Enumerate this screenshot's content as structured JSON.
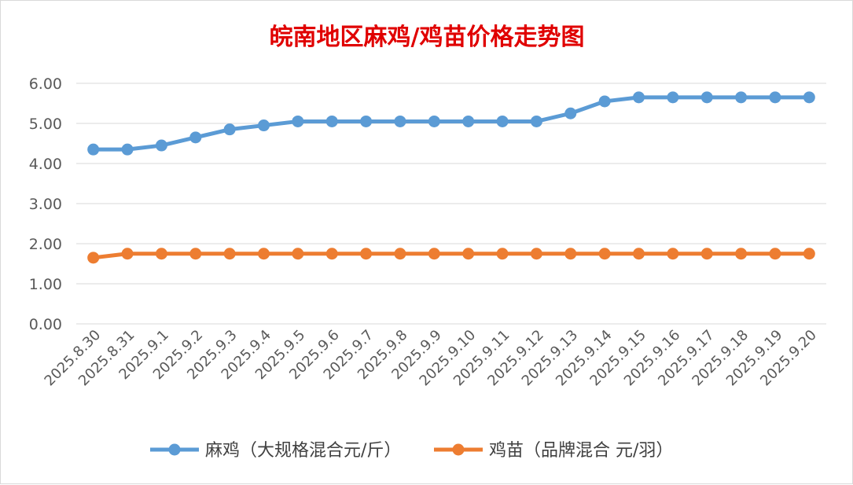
{
  "chart_data": {
    "type": "line",
    "title": "皖南地区麻鸡/鸡苗价格走势图",
    "xlabel": "",
    "ylabel": "",
    "ylim": [
      0,
      6
    ],
    "yticks": [
      "0.00",
      "1.00",
      "2.00",
      "3.00",
      "4.00",
      "5.00",
      "6.00"
    ],
    "grid": true,
    "legend_position": "bottom",
    "categories": [
      "2025.8.30",
      "2025.8.31",
      "2025.9.1",
      "2025.9.2",
      "2025.9.3",
      "2025.9.4",
      "2025.9.5",
      "2025.9.6",
      "2025.9.7",
      "2025.9.8",
      "2025.9.9",
      "2025.9.10",
      "2025.9.11",
      "2025.9.12",
      "2025.9.13",
      "2025.9.14",
      "2025.9.15",
      "2025.9.16",
      "2025.9.17",
      "2025.9.18",
      "2025.9.19",
      "2025.9.20"
    ],
    "series": [
      {
        "name": "麻鸡（大规格混合元/斤）",
        "color": "#5b9bd5",
        "values": [
          4.35,
          4.35,
          4.45,
          4.65,
          4.85,
          4.95,
          5.05,
          5.05,
          5.05,
          5.05,
          5.05,
          5.05,
          5.05,
          5.05,
          5.25,
          5.55,
          5.65,
          5.65,
          5.65,
          5.65,
          5.65,
          5.65
        ]
      },
      {
        "name": "鸡苗（品牌混合 元/羽）",
        "color": "#ed7d31",
        "values": [
          1.65,
          1.75,
          1.75,
          1.75,
          1.75,
          1.75,
          1.75,
          1.75,
          1.75,
          1.75,
          1.75,
          1.75,
          1.75,
          1.75,
          1.75,
          1.75,
          1.75,
          1.75,
          1.75,
          1.75,
          1.75,
          1.75
        ]
      }
    ],
    "title_color": "#e00000"
  }
}
